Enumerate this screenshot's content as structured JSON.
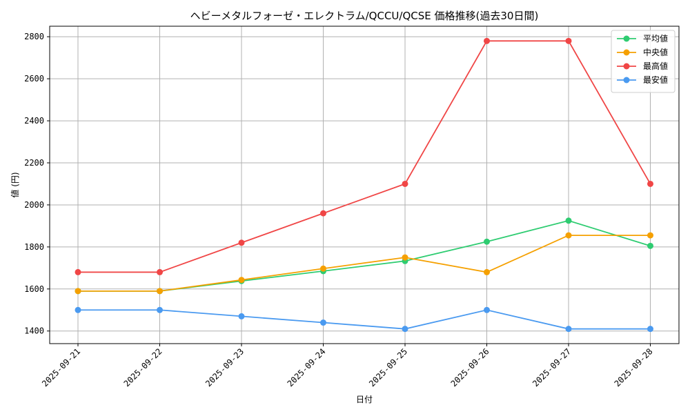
{
  "chart_data": {
    "type": "line",
    "title": "ヘビーメタルフォーゼ・エレクトラム/QCCU/QCSE 価格推移(過去30日間)",
    "xlabel": "日付",
    "ylabel": "値 (円)",
    "categories": [
      "2025-09-21",
      "2025-09-22",
      "2025-09-23",
      "2025-09-24",
      "2025-09-25",
      "2025-09-26",
      "2025-09-27",
      "2025-09-28"
    ],
    "ylim": [
      1340,
      2850
    ],
    "yticks": [
      1400,
      1600,
      1800,
      2000,
      2200,
      2400,
      2600,
      2800
    ],
    "grid": true,
    "legend_position": "top-right",
    "series": [
      {
        "name": "平均値",
        "color": "#2ecc71",
        "values": [
          1590,
          1590,
          1638,
          1685,
          1733,
          1825,
          1925,
          1805
        ]
      },
      {
        "name": "中央値",
        "color": "#f5a000",
        "values": [
          1590,
          1590,
          1643,
          1697,
          1750,
          1680,
          1855,
          1855
        ]
      },
      {
        "name": "最高値",
        "color": "#f04646",
        "values": [
          1680,
          1680,
          1820,
          1960,
          2100,
          2780,
          2780,
          2100
        ]
      },
      {
        "name": "最安値",
        "color": "#4a9af0",
        "values": [
          1500,
          1500,
          1470,
          1440,
          1410,
          1500,
          1410,
          1410
        ]
      }
    ]
  }
}
